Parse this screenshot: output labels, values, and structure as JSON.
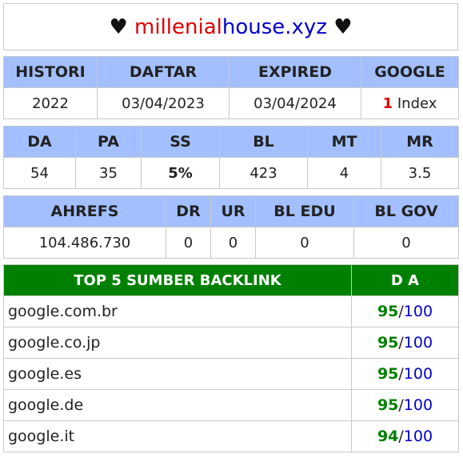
{
  "title": {
    "heart": "♥",
    "part1": "millenial",
    "part2": "house.xyz"
  },
  "table1": {
    "headers": [
      "HISTORI",
      "DAFTAR",
      "EXPIRED",
      "GOOGLE"
    ],
    "values": [
      "2022",
      "03/04/2023",
      "03/04/2024"
    ],
    "google_count": "1",
    "google_label": " Index"
  },
  "table2": {
    "headers": [
      "DA",
      "PA",
      "SS",
      "BL",
      "MT",
      "MR"
    ],
    "values": [
      "54",
      "35",
      "5%",
      "423",
      "4",
      "3.5"
    ]
  },
  "table3": {
    "headers": [
      "AHREFS",
      "DR",
      "UR",
      "BL EDU",
      "BL GOV"
    ],
    "values": [
      "104.486.730",
      "0",
      "0",
      "0",
      "0"
    ]
  },
  "backlinks": {
    "header_left": "TOP 5 SUMBER BACKLINK",
    "header_right": "D A",
    "max": "100",
    "slash": "/",
    "rows": [
      {
        "domain": "google.com.br",
        "da": "95"
      },
      {
        "domain": "google.co.jp",
        "da": "95"
      },
      {
        "domain": "google.es",
        "da": "95"
      },
      {
        "domain": "google.de",
        "da": "95"
      },
      {
        "domain": "google.it",
        "da": "94"
      }
    ]
  },
  "colors": {
    "header_blue": "#a3bfff",
    "header_green": "#008000",
    "accent_red": "#e00000",
    "accent_blue": "#0000cc"
  }
}
